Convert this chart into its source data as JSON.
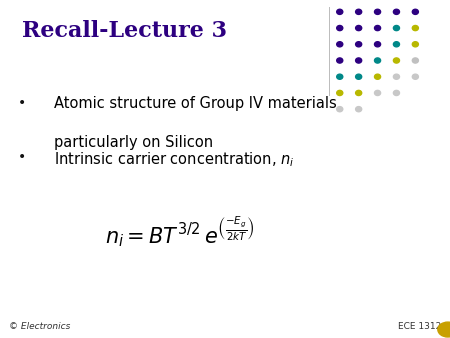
{
  "title": "Recall-Lecture 3",
  "title_color": "#2d0080",
  "title_fontsize": 16,
  "bullet1_line1": "Atomic structure of Group IV materials",
  "bullet1_line2": "particularly on Silicon",
  "bullet2": "Intrinsic carrier concentration, $n_i$",
  "footer_left": "© Electronics",
  "footer_right": "ECE 1312",
  "bg_color": "#ffffff",
  "text_color": "#000000",
  "dot_colors": [
    [
      "#2d0080",
      "#2d0080",
      "#2d0080",
      "#2d0080",
      "#2d0080"
    ],
    [
      "#2d0080",
      "#2d0080",
      "#2d0080",
      "#008888",
      "#b8b800"
    ],
    [
      "#2d0080",
      "#2d0080",
      "#2d0080",
      "#008888",
      "#b8b800"
    ],
    [
      "#2d0080",
      "#2d0080",
      "#008888",
      "#b8b800",
      "#c0c0c0"
    ],
    [
      "#008888",
      "#008888",
      "#b8b800",
      "#c8c8c8",
      "#c8c8c8"
    ],
    [
      "#b8b800",
      "#b8b800",
      "#c8c8c8",
      "#c8c8c8",
      "none"
    ],
    [
      "#c8c8c8",
      "#c8c8c8",
      "none",
      "none",
      "none"
    ]
  ],
  "dot_cols": 5,
  "dot_rows": 7
}
